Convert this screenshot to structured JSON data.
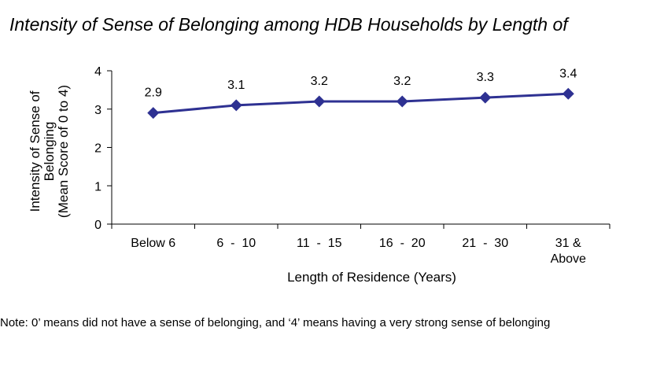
{
  "chart_data": {
    "type": "line",
    "title": "Intensity of Sense of Belonging among HDB Households by Length of",
    "xlabel": "Length of Residence (Years)",
    "ylabel": [
      "Intensity of Sense of",
      "Belonging",
      "(Mean Score of 0 to 4)"
    ],
    "categories": [
      [
        "Below 6"
      ],
      [
        "6  -  10"
      ],
      [
        "11  -  15"
      ],
      [
        "16  -  20"
      ],
      [
        "21  -  30"
      ],
      [
        "31 &",
        "Above"
      ]
    ],
    "series": [
      {
        "values": [
          2.9,
          3.1,
          3.2,
          3.2,
          3.3,
          3.4
        ]
      }
    ],
    "data_labels": [
      "2.9",
      "3.1",
      "3.2",
      "3.2",
      "3.3",
      "3.4"
    ],
    "ylim": [
      0,
      4
    ],
    "yticks": [
      0,
      1,
      2,
      3,
      4
    ],
    "grid": false,
    "legend": "none",
    "colors": {
      "series": "#2e3192",
      "axis": "#000000"
    }
  },
  "note": "Note: 0’ means did not have a sense of belonging, and ‘4’ means having a very strong sense of belonging"
}
